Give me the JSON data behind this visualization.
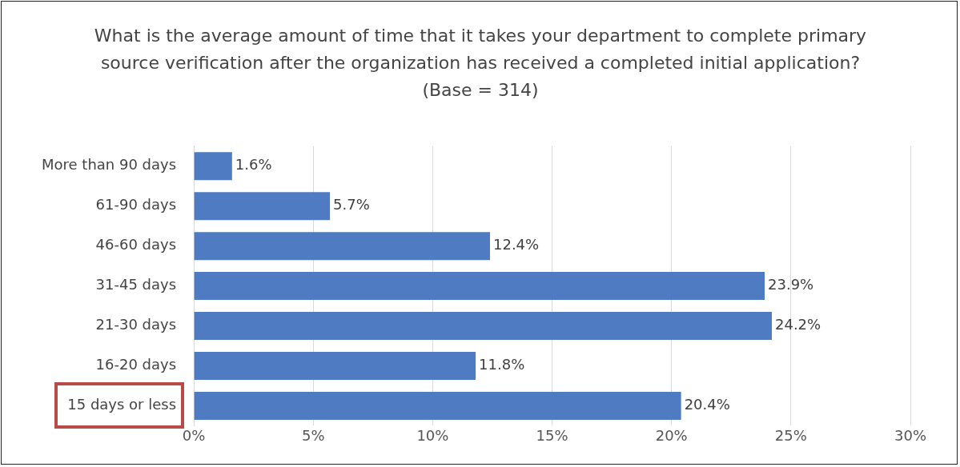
{
  "chart_data": {
    "type": "bar",
    "orientation": "horizontal",
    "title": "What is the average amount of time that it takes your department to complete primary source verification after the organization has received a completed initial application?  (Base = 314)",
    "categories": [
      "More than 90 days",
      "61-90 days",
      "46-60 days",
      "31-45 days",
      "21-30 days",
      "16-20 days",
      "15 days or less"
    ],
    "values": [
      1.6,
      5.7,
      12.4,
      23.9,
      24.2,
      11.8,
      20.4
    ],
    "value_labels": [
      "1.6%",
      "5.7%",
      "12.4%",
      "23.9%",
      "24.2%",
      "11.8%",
      "20.4%"
    ],
    "color": "#4f7bc3",
    "xlim": [
      0,
      30
    ],
    "xticks": [
      {
        "value": 0,
        "label": "0%"
      },
      {
        "value": 5,
        "label": "5%"
      },
      {
        "value": 10,
        "label": "10%"
      },
      {
        "value": 15,
        "label": "15%"
      },
      {
        "value": 20,
        "label": "20%"
      },
      {
        "value": 25,
        "label": "25%"
      },
      {
        "value": 30,
        "label": "30%"
      }
    ],
    "grid": "x"
  }
}
